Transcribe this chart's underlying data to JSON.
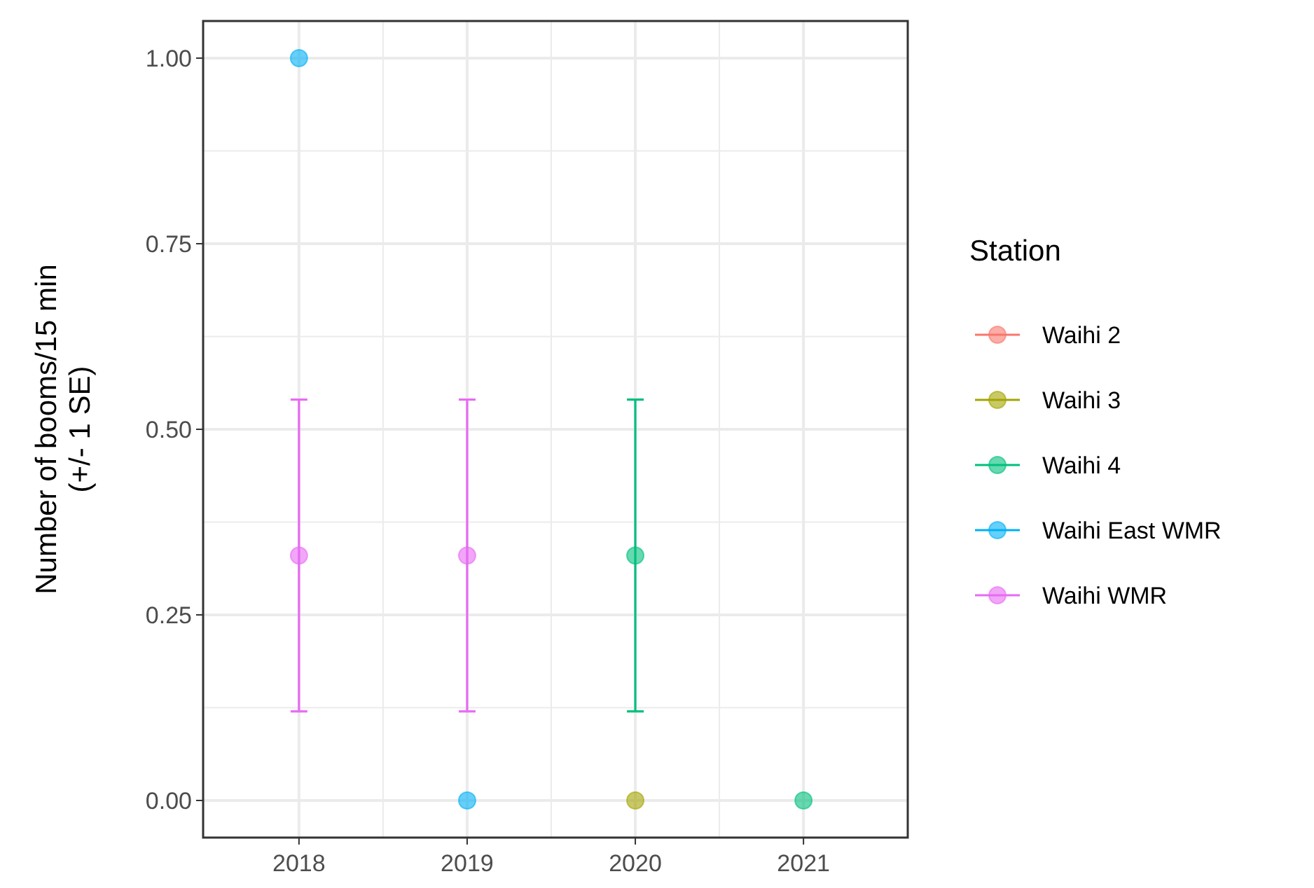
{
  "chart_data": {
    "type": "scatter",
    "ylabel": "Number of booms/15 min\n(+/- 1 SE)",
    "legend_title": "Station",
    "xlim": [
      2017.43,
      2021.62
    ],
    "xticks": [
      2018,
      2019,
      2020,
      2021
    ],
    "ylim": [
      -0.05,
      1.05
    ],
    "yticks": [
      {
        "value": 0,
        "label": "0.00"
      },
      {
        "value": 0.25,
        "label": "0.25"
      },
      {
        "value": 0.5,
        "label": "0.50"
      },
      {
        "value": 0.75,
        "label": "0.75"
      },
      {
        "value": 1,
        "label": "1.00"
      }
    ],
    "grid": true,
    "legend": "right",
    "marker": "circle",
    "series": [
      {
        "name": "Waihi 2",
        "color": "#f8766d"
      },
      {
        "name": "Waihi 3",
        "color": "#a3a500",
        "x": [
          2020
        ],
        "values": [
          0
        ],
        "errors": [
          null
        ]
      },
      {
        "name": "Waihi 4",
        "color": "#00bf7d",
        "x": [
          2020,
          2021
        ],
        "values": [
          0.33,
          0
        ],
        "errors": [
          0.21,
          null
        ]
      },
      {
        "name": "Waihi East WMR",
        "color": "#00b0f6",
        "x": [
          2018,
          2019
        ],
        "values": [
          1,
          0
        ],
        "errors": [
          null,
          null
        ]
      },
      {
        "name": "Waihi WMR",
        "color": "#e76bf3",
        "x": [
          2018,
          2019
        ],
        "values": [
          0.33,
          0.33
        ],
        "errors": [
          0.21,
          0.21
        ]
      }
    ]
  }
}
